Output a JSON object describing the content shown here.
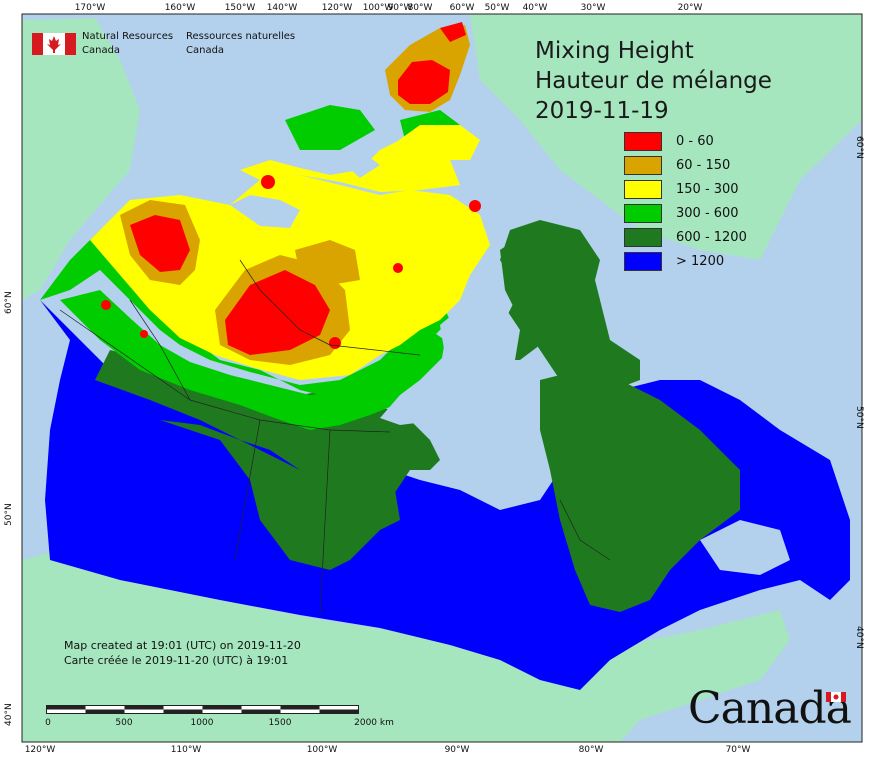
{
  "org": {
    "name_en": "Natural Resources\nCanada",
    "name_fr": "Ressources naturelles\nCanada"
  },
  "title": {
    "line1": "Mixing Height",
    "line2": "Hauteur de mélange",
    "date": "2019-11-19"
  },
  "legend": [
    {
      "label": "0 - 60",
      "color": "#ff0000"
    },
    {
      "label": "60 - 150",
      "color": "#d9a300"
    },
    {
      "label": "150 - 300",
      "color": "#ffff00"
    },
    {
      "label": "300 - 600",
      "color": "#00cc00"
    },
    {
      "label": "600 - 1200",
      "color": "#1f7a1f"
    },
    {
      "label": "> 1200",
      "color": "#0000ff"
    }
  ],
  "credits": {
    "en": "Map created at 19:01 (UTC) on 2019-11-20",
    "fr": "Carte créée le 2019-11-20 (UTC) à 19:01"
  },
  "scale_bar": {
    "labels": [
      "0",
      "500",
      "1000",
      "1500",
      "2000  km"
    ]
  },
  "graticule": {
    "top": [
      "170°W",
      "160°W",
      "150°W",
      "140°W",
      "120°W",
      "100°W",
      "90°W",
      "80°W",
      "60°W",
      "50°W",
      "40°W",
      "30°W",
      "20°W"
    ],
    "bottom": [
      "120°W",
      "110°W",
      "100°W",
      "90°W",
      "80°W",
      "70°W"
    ],
    "left": [
      "60°N",
      "50°N",
      "40°N"
    ],
    "right": [
      "60°N",
      "50°N",
      "40°N"
    ]
  },
  "wordmark": "Canada",
  "colors": {
    "ocean": "#b3d1ec",
    "land_other": "#a6e6bf"
  }
}
